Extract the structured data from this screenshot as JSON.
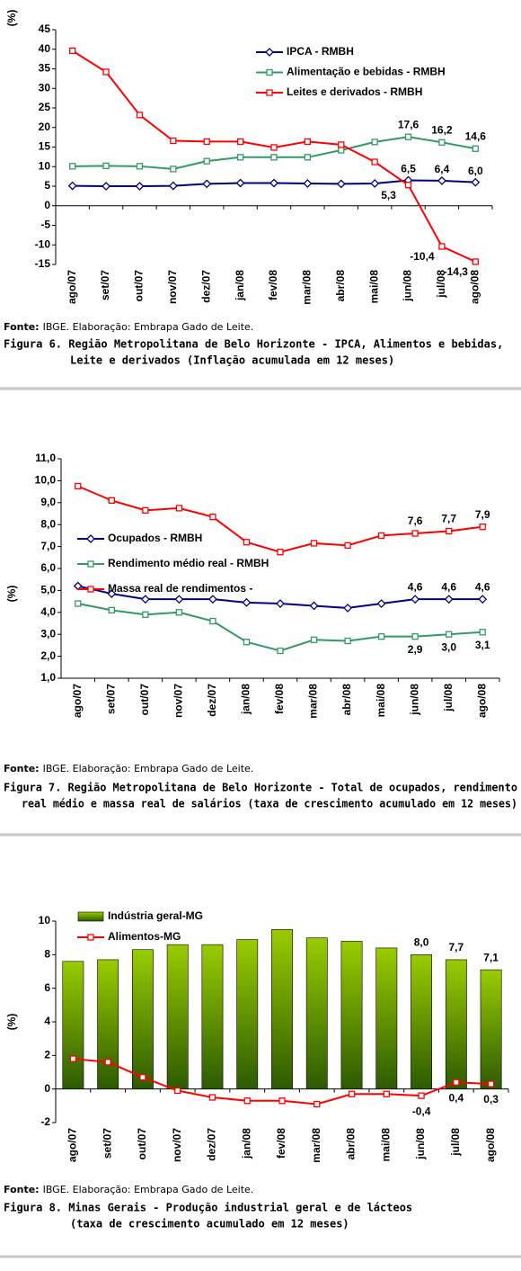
{
  "chart_data": [
    {
      "type": "line",
      "y_label": "(%)",
      "categories": [
        "ago/07",
        "set/07",
        "out/07",
        "nov/07",
        "dez/07",
        "jan/08",
        "fev/08",
        "mar/08",
        "abr/08",
        "mai/08",
        "jun/08",
        "jul/08",
        "ago/08"
      ],
      "series": [
        {
          "name": "IPCA - RMBH",
          "color": "#000080",
          "marker": "diamond",
          "values": [
            5.1,
            5.0,
            5.0,
            5.1,
            5.6,
            5.8,
            5.8,
            5.7,
            5.6,
            5.7,
            6.5,
            6.4,
            6.0
          ],
          "value_labels": [
            null,
            null,
            null,
            null,
            null,
            null,
            null,
            null,
            null,
            null,
            "6,5",
            "6,4",
            "6,0"
          ]
        },
        {
          "name": "Alimentação e bebidas - RMBH",
          "color": "#339966",
          "marker": "square",
          "values": [
            10.1,
            10.2,
            10.1,
            9.4,
            11.4,
            12.4,
            12.4,
            12.4,
            14.2,
            16.3,
            17.6,
            16.2,
            14.6
          ],
          "value_labels": [
            null,
            null,
            null,
            null,
            null,
            null,
            null,
            null,
            null,
            null,
            "17,6",
            "16,2",
            "14,6"
          ]
        },
        {
          "name": "Leites e derivados - RMBH",
          "color": "#ff0000",
          "marker": "square",
          "values": [
            39.6,
            34.2,
            23.2,
            16.6,
            16.4,
            16.4,
            14.9,
            16.4,
            15.6,
            11.2,
            5.3,
            -10.4,
            -14.3
          ],
          "value_labels": [
            null,
            null,
            null,
            null,
            null,
            null,
            null,
            null,
            null,
            null,
            "5,3",
            "-10,4",
            "-14,3"
          ]
        }
      ],
      "ylim": [
        -15,
        45
      ],
      "yticks": [
        -15,
        -10,
        -5,
        0,
        5,
        10,
        15,
        20,
        25,
        30,
        35,
        40,
        45
      ],
      "source_label": "Fonte:",
      "source": "IBGE. Elaboração: Embrapa Gado de Leite.",
      "caption": [
        "Figura 6. Região Metropolitana de Belo Horizonte - IPCA, Alimentos e bebidas,",
        "Leite e derivados (Inflação acumulada em 12 meses)"
      ]
    },
    {
      "type": "line",
      "y_label": "(%)",
      "categories": [
        "ago/07",
        "set/07",
        "out/07",
        "nov/07",
        "dez/07",
        "jan/08",
        "fev/08",
        "mar/08",
        "abr/08",
        "mai/08",
        "jun/08",
        "jul/08",
        "ago/08"
      ],
      "series": [
        {
          "name": "Ocupados - RMBH",
          "color": "#000080",
          "marker": "diamond",
          "values": [
            5.2,
            4.85,
            4.6,
            4.6,
            4.6,
            4.45,
            4.4,
            4.3,
            4.2,
            4.4,
            4.6,
            4.6,
            4.6
          ],
          "value_labels": [
            null,
            null,
            null,
            null,
            null,
            null,
            null,
            null,
            null,
            null,
            "4,6",
            "4,6",
            "4,6"
          ]
        },
        {
          "name": "Rendimento médio real - RMBH",
          "color": "#339966",
          "marker": "square",
          "values": [
            4.4,
            4.1,
            3.9,
            4.0,
            3.6,
            2.65,
            2.25,
            2.75,
            2.7,
            2.9,
            2.9,
            3.0,
            3.1
          ],
          "value_labels": [
            null,
            null,
            null,
            null,
            null,
            null,
            null,
            null,
            null,
            null,
            "2,9",
            "3,0",
            "3,1"
          ]
        },
        {
          "name": "Massa real de rendimentos -",
          "color": "#ff0000",
          "marker": "square",
          "values": [
            9.75,
            9.1,
            8.65,
            8.75,
            8.35,
            7.2,
            6.75,
            7.15,
            7.05,
            7.5,
            7.6,
            7.7,
            7.9
          ],
          "value_labels": [
            null,
            null,
            null,
            null,
            null,
            null,
            null,
            null,
            null,
            null,
            "7,6",
            "7,7",
            "7,9"
          ]
        }
      ],
      "ylim": [
        1,
        11
      ],
      "yticks": [
        {
          "value": 1,
          "label": "1,0"
        },
        {
          "value": 2,
          "label": "2,0"
        },
        {
          "value": 3,
          "label": "3,0"
        },
        {
          "value": 4,
          "label": "4,0"
        },
        {
          "value": 5,
          "label": "5,0"
        },
        {
          "value": 6,
          "label": "6,0"
        },
        {
          "value": 7,
          "label": "7,0"
        },
        {
          "value": 8,
          "label": "8,0"
        },
        {
          "value": 9,
          "label": "9,0"
        },
        {
          "value": 10,
          "label": "10,0"
        },
        {
          "value": 11,
          "label": "11,0"
        }
      ],
      "source_label": "Fonte:",
      "source": "IBGE. Elaboração: Embrapa Gado de Leite.",
      "caption": [
        "Figura 7. Região Metropolitana de Belo Horizonte - Total de ocupados, rendimento",
        "real médio e massa real de salários (taxa de crescimento acumulado em 12 meses)"
      ]
    },
    {
      "type": "bar",
      "y_label": "(%)",
      "categories": [
        "ago/07",
        "set/07",
        "out/07",
        "nov/07",
        "dez/07",
        "jan/08",
        "fev/08",
        "mar/08",
        "abr/08",
        "mai/08",
        "jun/08",
        "jul/08",
        "ago/08"
      ],
      "series": [
        {
          "name": "Indústria geral-MG",
          "color": "#99cc00",
          "type": "bar",
          "values": [
            7.6,
            7.7,
            8.3,
            8.6,
            8.6,
            8.9,
            9.5,
            9.0,
            8.8,
            8.4,
            8.0,
            7.7,
            7.1
          ],
          "value_labels": [
            null,
            null,
            null,
            null,
            null,
            null,
            null,
            null,
            null,
            null,
            "8,0",
            "7,7",
            "7,1"
          ]
        },
        {
          "name": "Alimentos-MG",
          "color": "#ff0000",
          "type": "line",
          "marker": "square",
          "values": [
            1.8,
            1.6,
            0.7,
            -0.1,
            -0.5,
            -0.7,
            -0.7,
            -0.9,
            -0.3,
            -0.3,
            -0.4,
            0.4,
            0.3
          ],
          "value_labels": [
            null,
            null,
            null,
            null,
            null,
            null,
            null,
            null,
            null,
            null,
            "-0,4",
            "0,4",
            "0,3"
          ]
        }
      ],
      "ylim": [
        -2,
        10
      ],
      "yticks": [
        -2,
        0,
        2,
        4,
        6,
        8,
        10
      ],
      "source_label": "Fonte:",
      "source": "IBGE. Elaboração: Embrapa Gado de Leite.",
      "caption": [
        "Figura 8. Minas Gerais - Produção industrial geral e de lácteos",
        "(taxa de crescimento acumulado em 12 meses)"
      ]
    }
  ]
}
